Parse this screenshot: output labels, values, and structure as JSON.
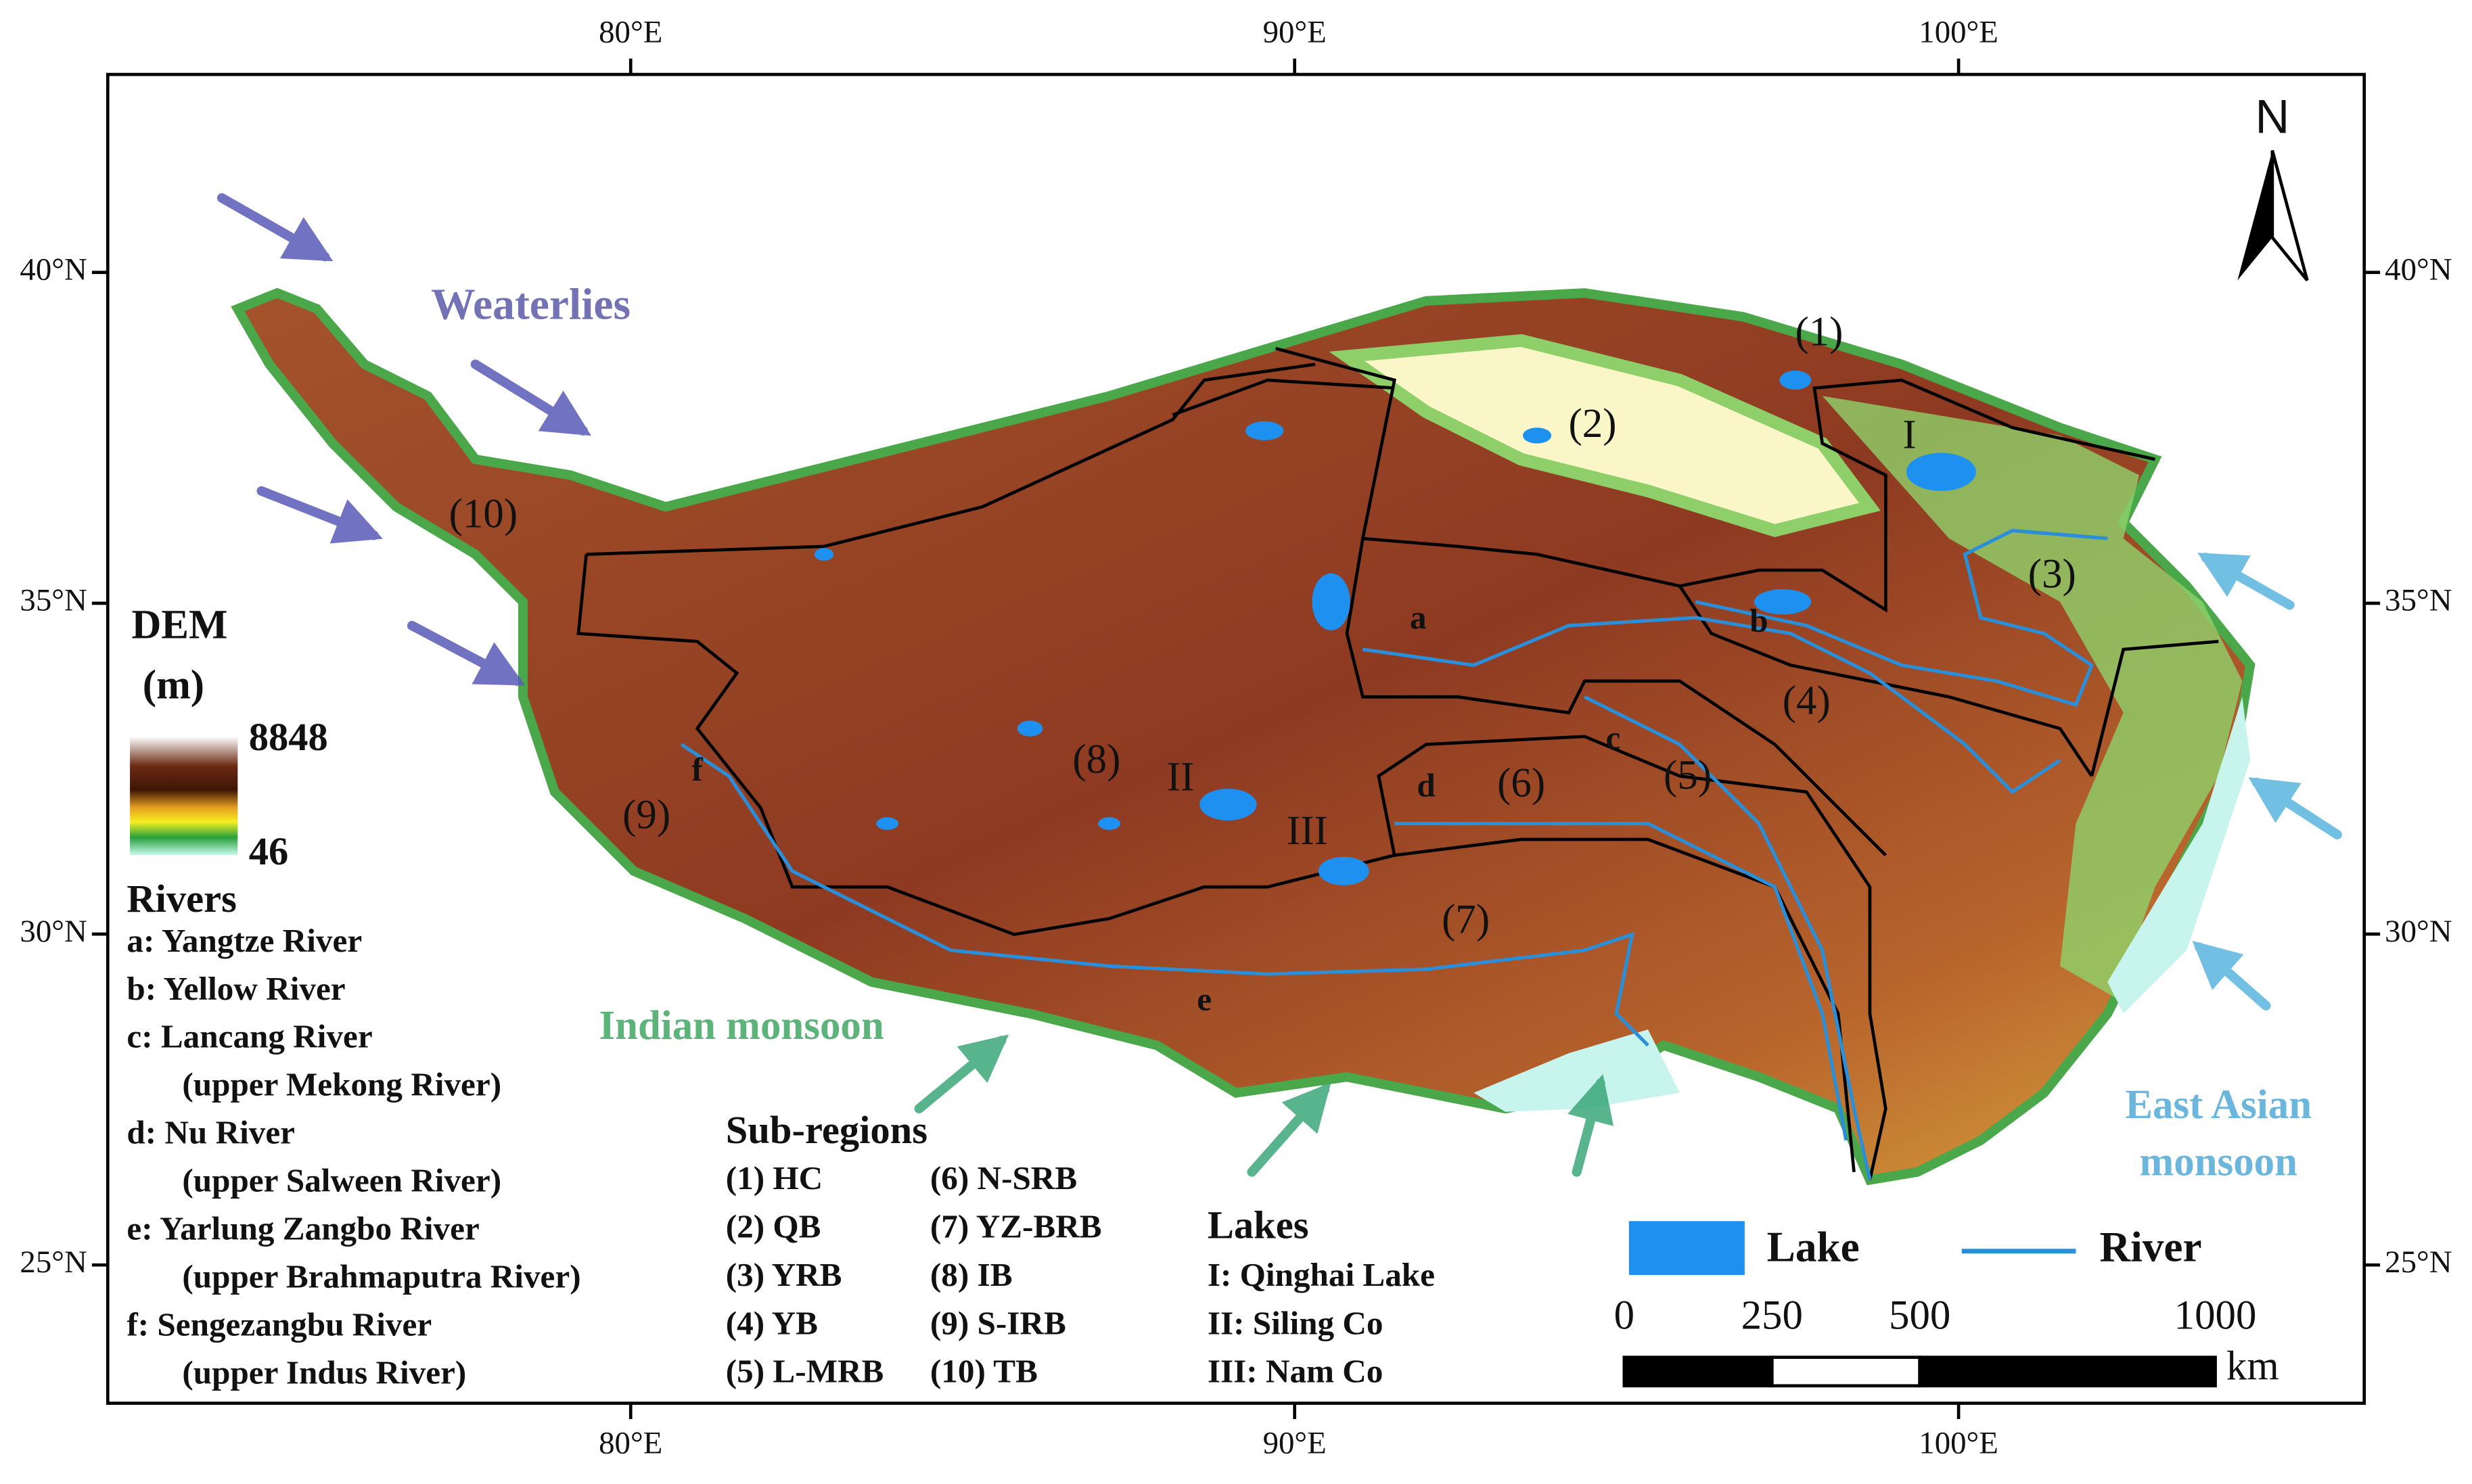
{
  "lon_ticks": [
    {
      "value": 80,
      "label": "80°E"
    },
    {
      "value": 90,
      "label": "90°E"
    },
    {
      "value": 100,
      "label": "100°E"
    }
  ],
  "lat_ticks": [
    {
      "value": 40,
      "label": "40°N"
    },
    {
      "value": 35,
      "label": "35°N"
    },
    {
      "value": 30,
      "label": "30°N"
    },
    {
      "value": 25,
      "label": "25°N"
    }
  ],
  "north": "N",
  "annotations": {
    "westerlies": "Weaterlies",
    "indian_monsoon": "Indian monsoon",
    "east_asian_monsoon": [
      "East Asian",
      "monsoon"
    ]
  },
  "dem_legend": {
    "title": [
      "DEM",
      "(m)"
    ],
    "max": 8848,
    "min": 46
  },
  "map_labels": [
    "(1)",
    "(2)",
    "(3)",
    "(4)",
    "(5)",
    "(6)",
    "(7)",
    "(8)",
    "(9)",
    "(10)",
    "a",
    "b",
    "c",
    "d",
    "e",
    "f",
    "I",
    "II",
    "III"
  ],
  "rivers": {
    "title": "Rivers",
    "items": [
      [
        "a: Yangtze River"
      ],
      [
        "b: Yellow River"
      ],
      [
        "c: Lancang River",
        "(upper Mekong River)"
      ],
      [
        "d: Nu River",
        "(upper Salween River)"
      ],
      [
        "e: Yarlung Zangbo River",
        "(upper Brahmaputra River)"
      ],
      [
        "f: Sengezangbu River",
        "(upper Indus River)"
      ]
    ]
  },
  "subregions": {
    "title": "Sub-regions",
    "items": [
      "(1) HC",
      "(2) QB",
      "(3) YRB",
      "(4) YB",
      "(5) L-MRB",
      "(6) N-SRB",
      "(7) YZ-BRB",
      "(8) IB",
      "(9) S-IRB",
      "(10) TB"
    ]
  },
  "lakes": {
    "title": "Lakes",
    "items": [
      "I: Qinghai Lake",
      "II: Siling Co",
      "III: Nam Co"
    ]
  },
  "key": {
    "lake": "Lake",
    "river": "River"
  },
  "scale_bar": {
    "ticks": [
      0,
      250,
      500,
      1000
    ],
    "unit": "km"
  }
}
